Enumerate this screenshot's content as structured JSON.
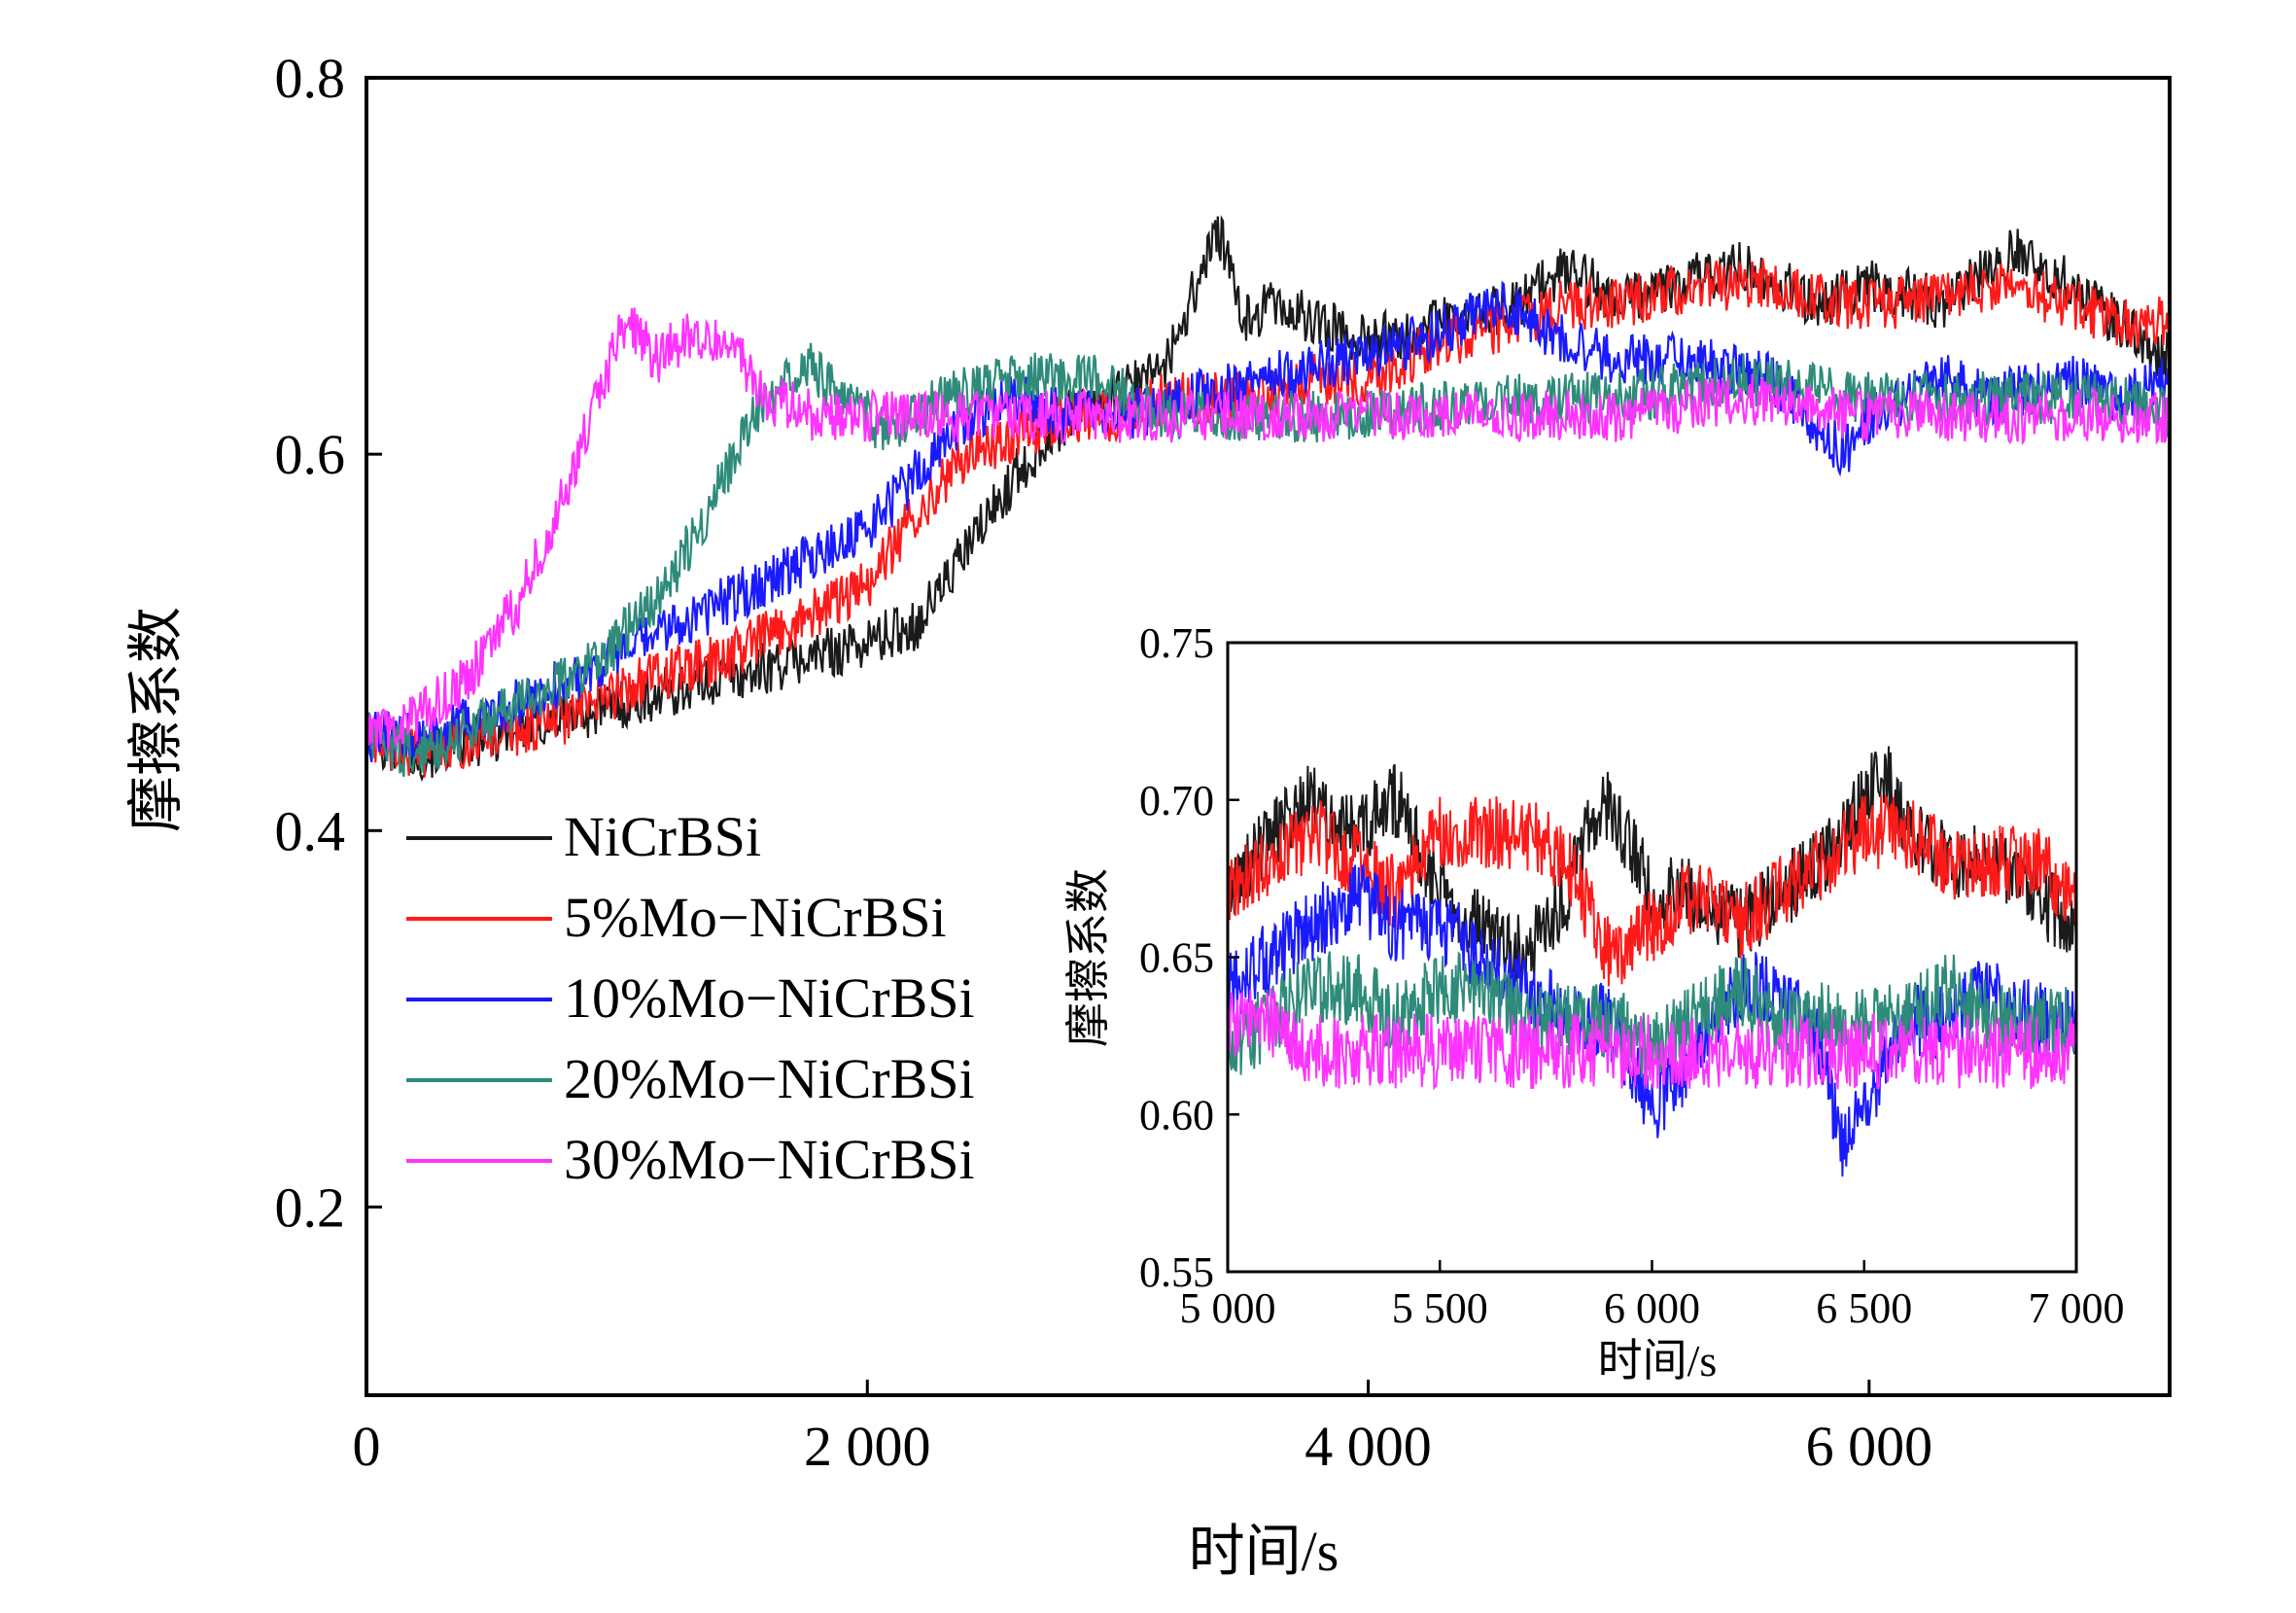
{
  "chart_data": [
    {
      "type": "line",
      "xlabel": "时间/s",
      "ylabel": "摩擦系数",
      "xlim": [
        0,
        7200
      ],
      "ylim": [
        0.1,
        0.8
      ],
      "xticks": [
        0,
        2000,
        4000,
        6000
      ],
      "xtick_labels": [
        "0",
        "2 000",
        "4 000",
        "6 000"
      ],
      "yticks": [
        0.2,
        0.4,
        0.6,
        0.8
      ],
      "ytick_labels": [
        "0.2",
        "0.4",
        "0.6",
        "0.8"
      ],
      "legend_position": "left-middle",
      "grid": false,
      "series": [
        {
          "name": "NiCrBSi",
          "color": "#1a1a1a",
          "x": [
            0,
            200,
            500,
            800,
            1100,
            1400,
            1700,
            2000,
            2200,
            2400,
            2600,
            2800,
            3000,
            3200,
            3400,
            3500,
            3600,
            3800,
            4000,
            4300,
            4600,
            4800,
            5000,
            5200,
            5500,
            5800,
            6000,
            6300,
            6600,
            6800,
            7000,
            7200
          ],
          "y": [
            0.45,
            0.44,
            0.45,
            0.46,
            0.47,
            0.48,
            0.49,
            0.5,
            0.51,
            0.55,
            0.59,
            0.62,
            0.63,
            0.65,
            0.72,
            0.67,
            0.68,
            0.67,
            0.66,
            0.67,
            0.68,
            0.7,
            0.68,
            0.69,
            0.7,
            0.68,
            0.69,
            0.68,
            0.71,
            0.69,
            0.67,
            0.65
          ]
        },
        {
          "name": "5%Mo−NiCrBSi",
          "color": "#ff1a1a",
          "x": [
            0,
            200,
            500,
            800,
            1100,
            1400,
            1700,
            2000,
            2200,
            2400,
            2600,
            2800,
            3000,
            3200,
            3500,
            3800,
            4000,
            4300,
            4600,
            4800,
            5000,
            5300,
            5600,
            5900,
            6200,
            6500,
            6800,
            7000,
            7200
          ],
          "y": [
            0.45,
            0.44,
            0.45,
            0.46,
            0.48,
            0.49,
            0.51,
            0.53,
            0.57,
            0.6,
            0.61,
            0.62,
            0.62,
            0.63,
            0.63,
            0.64,
            0.64,
            0.66,
            0.67,
            0.68,
            0.68,
            0.69,
            0.69,
            0.68,
            0.68,
            0.69,
            0.68,
            0.67,
            0.67
          ]
        },
        {
          "name": "10%Mo−NiCrBSi",
          "color": "#1a1aff",
          "x": [
            0,
            200,
            500,
            800,
            1100,
            1400,
            1700,
            2000,
            2200,
            2400,
            2600,
            2800,
            3000,
            3300,
            3600,
            3900,
            4200,
            4500,
            4800,
            5000,
            5300,
            5600,
            5900,
            6000,
            6300,
            6500,
            6800,
            7000,
            7200
          ],
          "y": [
            0.45,
            0.45,
            0.46,
            0.48,
            0.5,
            0.52,
            0.54,
            0.56,
            0.59,
            0.62,
            0.63,
            0.62,
            0.62,
            0.63,
            0.64,
            0.65,
            0.66,
            0.68,
            0.66,
            0.65,
            0.65,
            0.64,
            0.6,
            0.62,
            0.64,
            0.63,
            0.64,
            0.63,
            0.64
          ]
        },
        {
          "name": "20%Mo−NiCrBSi",
          "color": "#2e8b7a",
          "x": [
            0,
            200,
            500,
            800,
            1000,
            1200,
            1400,
            1550,
            1650,
            1750,
            1900,
            2100,
            2300,
            2600,
            2900,
            3200,
            3500,
            4000,
            4500,
            5000,
            5500,
            6000,
            6500,
            7000,
            7200
          ],
          "y": [
            0.45,
            0.44,
            0.46,
            0.48,
            0.5,
            0.53,
            0.58,
            0.62,
            0.64,
            0.65,
            0.63,
            0.61,
            0.63,
            0.64,
            0.64,
            0.62,
            0.62,
            0.62,
            0.63,
            0.63,
            0.64,
            0.63,
            0.63,
            0.63,
            0.62
          ]
        },
        {
          "name": "30%Mo−NiCrBSi",
          "color": "#ff33ff",
          "x": [
            0,
            200,
            400,
            600,
            800,
            900,
            1000,
            1050,
            1150,
            1300,
            1450,
            1600,
            1800,
            2100,
            2500,
            3000,
            3500,
            4000,
            4500,
            5000,
            5500,
            6000,
            6500,
            7000,
            7200
          ],
          "y": [
            0.45,
            0.46,
            0.48,
            0.52,
            0.58,
            0.62,
            0.66,
            0.67,
            0.65,
            0.665,
            0.66,
            0.63,
            0.62,
            0.62,
            0.62,
            0.62,
            0.62,
            0.62,
            0.62,
            0.62,
            0.63,
            0.62,
            0.62,
            0.62,
            0.62
          ]
        }
      ]
    },
    {
      "type": "line",
      "xlabel": "时间/s",
      "ylabel": "摩擦系数",
      "xlim": [
        5000,
        7000
      ],
      "ylim": [
        0.55,
        0.75
      ],
      "xticks": [
        5000,
        5500,
        6000,
        6500,
        7000
      ],
      "xtick_labels": [
        "5 000",
        "5 500",
        "6 000",
        "6 500",
        "7 000"
      ],
      "yticks": [
        0.55,
        0.6,
        0.65,
        0.7,
        0.75
      ],
      "ytick_labels": [
        "0.55",
        "0.60",
        "0.65",
        "0.70",
        "0.75"
      ],
      "grid": false,
      "series": [
        {
          "name": "NiCrBSi",
          "color": "#1a1a1a",
          "x": [
            5000,
            5100,
            5200,
            5300,
            5400,
            5500,
            5600,
            5700,
            5800,
            5850,
            5900,
            6000,
            6100,
            6200,
            6300,
            6400,
            6500,
            6550,
            6600,
            6700,
            6800,
            6900,
            7000
          ],
          "y": [
            0.67,
            0.69,
            0.7,
            0.69,
            0.7,
            0.67,
            0.66,
            0.65,
            0.67,
            0.69,
            0.7,
            0.67,
            0.67,
            0.66,
            0.67,
            0.68,
            0.7,
            0.71,
            0.69,
            0.68,
            0.68,
            0.67,
            0.66
          ]
        },
        {
          "name": "5%Mo−NiCrBSi",
          "color": "#ff1a1a",
          "x": [
            5000,
            5100,
            5200,
            5300,
            5400,
            5500,
            5600,
            5700,
            5800,
            5900,
            6000,
            6100,
            6200,
            6300,
            6400,
            6500,
            6600,
            6700,
            6800,
            6900,
            7000
          ],
          "y": [
            0.67,
            0.68,
            0.69,
            0.68,
            0.67,
            0.69,
            0.69,
            0.69,
            0.68,
            0.65,
            0.66,
            0.67,
            0.66,
            0.67,
            0.68,
            0.69,
            0.69,
            0.68,
            0.68,
            0.68,
            0.67
          ]
        },
        {
          "name": "10%Mo−NiCrBSi",
          "color": "#1a1aff",
          "x": [
            5000,
            5100,
            5200,
            5300,
            5400,
            5500,
            5600,
            5700,
            5800,
            5900,
            6000,
            6100,
            6200,
            6300,
            6400,
            6450,
            6500,
            6600,
            6700,
            6800,
            6900,
            7000
          ],
          "y": [
            0.64,
            0.65,
            0.66,
            0.67,
            0.66,
            0.66,
            0.65,
            0.64,
            0.63,
            0.63,
            0.6,
            0.62,
            0.64,
            0.64,
            0.62,
            0.59,
            0.6,
            0.63,
            0.63,
            0.64,
            0.63,
            0.63
          ]
        },
        {
          "name": "20%Mo−NiCrBSi",
          "color": "#2e8b7a",
          "x": [
            5000,
            5100,
            5200,
            5300,
            5400,
            5500,
            5600,
            5700,
            5800,
            5900,
            6000,
            6100,
            6200,
            6300,
            6400,
            6500,
            6600,
            6700,
            6800,
            6900,
            7000
          ],
          "y": [
            0.62,
            0.63,
            0.64,
            0.64,
            0.63,
            0.64,
            0.64,
            0.63,
            0.63,
            0.63,
            0.62,
            0.63,
            0.64,
            0.63,
            0.63,
            0.63,
            0.63,
            0.64,
            0.63,
            0.63,
            0.63
          ]
        },
        {
          "name": "30%Mo−NiCrBSi",
          "color": "#ff33ff",
          "x": [
            5000,
            5100,
            5200,
            5300,
            5400,
            5500,
            5600,
            5700,
            5800,
            5900,
            6000,
            6100,
            6200,
            6300,
            6400,
            6500,
            6600,
            6700,
            6800,
            6900,
            7000
          ],
          "y": [
            0.63,
            0.63,
            0.62,
            0.62,
            0.62,
            0.62,
            0.62,
            0.62,
            0.62,
            0.62,
            0.62,
            0.62,
            0.62,
            0.62,
            0.62,
            0.62,
            0.62,
            0.62,
            0.62,
            0.62,
            0.62
          ]
        }
      ]
    }
  ]
}
